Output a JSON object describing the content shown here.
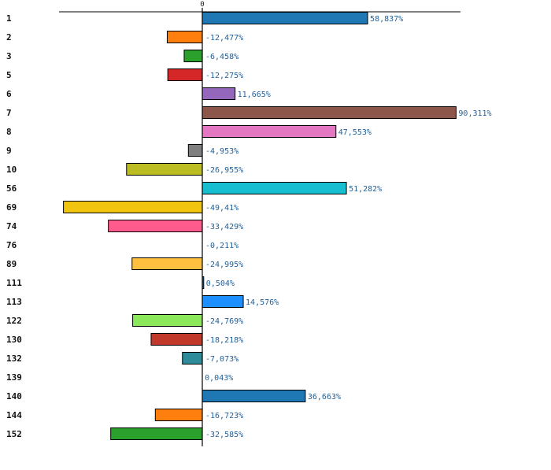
{
  "chart_data": {
    "type": "bar",
    "orientation": "horizontal",
    "zero_tick_label": "0",
    "categories": [
      "1",
      "2",
      "3",
      "5",
      "6",
      "7",
      "8",
      "9",
      "10",
      "56",
      "69",
      "74",
      "76",
      "89",
      "111",
      "113",
      "122",
      "130",
      "132",
      "139",
      "140",
      "144",
      "152"
    ],
    "values": [
      58.837,
      -12.477,
      -6.458,
      -12.275,
      11.665,
      90.311,
      47.553,
      -4.953,
      -26.955,
      51.282,
      -49.41,
      -33.429,
      -0.211,
      -24.995,
      0.504,
      14.576,
      -24.769,
      -18.218,
      -7.073,
      0.043,
      36.663,
      -16.723,
      -32.585
    ],
    "value_labels": [
      "58,837%",
      "-12,477%",
      "-6,458%",
      "-12,275%",
      "11,665%",
      "90,311%",
      "47,553%",
      "-4,953%",
      "-26,955%",
      "51,282%",
      "-49,41%",
      "-33,429%",
      "-0,211%",
      "-24,995%",
      "0,504%",
      "14,576%",
      "-24,769%",
      "-18,218%",
      "-7,073%",
      "0,043%",
      "36,663%",
      "-16,723%",
      "-32,585%"
    ],
    "colors": [
      "#1f77b4",
      "#ff7f0e",
      "#2ca02c",
      "#d62728",
      "#9467bd",
      "#8c564b",
      "#e377c2",
      "#7f7f7f",
      "#bcbd22",
      "#17becf",
      "#f1c40f",
      "#ff5c8d",
      "#1f77b4",
      "#ffbf3f",
      "#1f77b4",
      "#1e8fff",
      "#8ae85a",
      "#c0392b",
      "#2e8b9a",
      "#1f77b4",
      "#1f77b4",
      "#ff7f0e",
      "#2ca02c"
    ],
    "xlim": [
      -50,
      92
    ],
    "legend": "none",
    "grid": false
  }
}
